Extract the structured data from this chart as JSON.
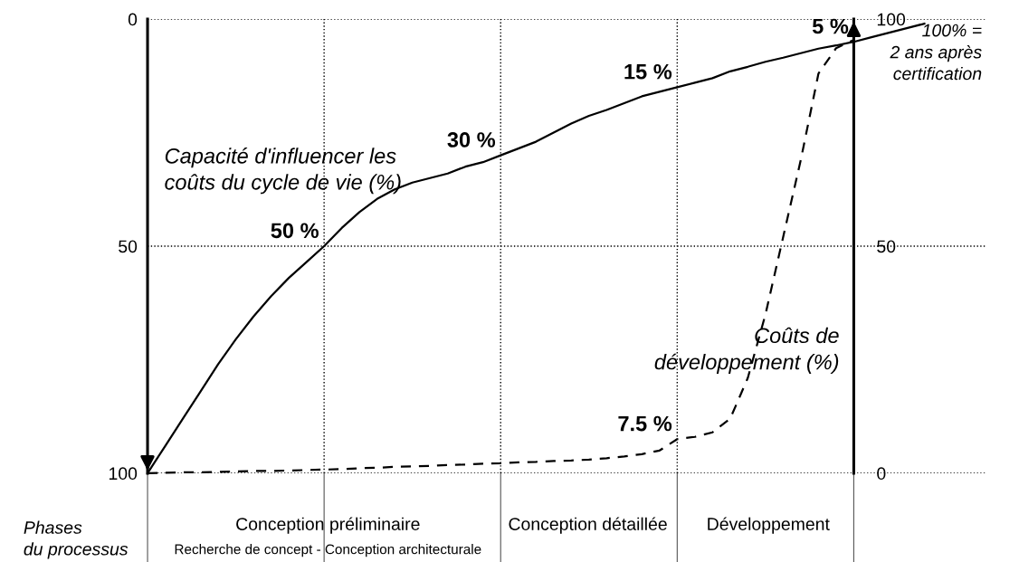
{
  "chart_data": {
    "type": "line",
    "xlabel": "Phases\ndu processus\nde conception",
    "categories": [
      null,
      null,
      null,
      null,
      null,
      null,
      null,
      null,
      null,
      null,
      null,
      null,
      null,
      null,
      null,
      null,
      null,
      null,
      null,
      null,
      null,
      null,
      null,
      null,
      null,
      null,
      null,
      null,
      null,
      null,
      null,
      null,
      null,
      null,
      null,
      null,
      null,
      null,
      null,
      null,
      null,
      null,
      null,
      null,
      null
    ],
    "ylim": [
      100,
      0
    ],
    "yticks": [
      0,
      50,
      100
    ],
    "y2lim": [
      0,
      100
    ],
    "y2ticks": [
      0,
      50,
      100
    ],
    "grid": true,
    "legend": false,
    "series": [
      {
        "name": "Capacité d'influencer les\ncoûts du cycle de vie (%)",
        "color": "#000000",
        "line_style": "solid",
        "marker": "none",
        "values": [
          100,
          94,
          88,
          82,
          76,
          70.5,
          65.5,
          61,
          57,
          53.5,
          50,
          46,
          42.5,
          39.6,
          37.5,
          36,
          35,
          34,
          32.5,
          31.5,
          30,
          28.5,
          27,
          25,
          23,
          21.3,
          20,
          18.5,
          17,
          16,
          15,
          14,
          13,
          11.5,
          10.5,
          9.4,
          8.5,
          7.5,
          6.5,
          5.8,
          5,
          4,
          3,
          2,
          1
        ],
        "value_labels": [
          null,
          null,
          null,
          null,
          null,
          null,
          null,
          null,
          null,
          null,
          "50 %",
          null,
          null,
          null,
          null,
          null,
          null,
          null,
          null,
          null,
          "30 %",
          null,
          null,
          null,
          null,
          null,
          null,
          null,
          null,
          null,
          "15 %",
          null,
          null,
          null,
          null,
          null,
          null,
          null,
          null,
          null,
          "5 %",
          null,
          null,
          null,
          null
        ]
      },
      {
        "name": "Coûts de\ndéveloppement (%)",
        "color": "#000000",
        "line_style": "dashed",
        "marker": "none",
        "axis": "y2",
        "values": [
          0,
          0.1,
          0.2,
          0.2,
          0.3,
          0.4,
          0.5,
          0.5,
          0.6,
          0.7,
          0.8,
          0.9,
          1.1,
          1.2,
          1.4,
          1.5,
          1.6,
          1.8,
          1.9,
          2.1,
          2.2,
          2.4,
          2.5,
          2.7,
          2.8,
          3,
          3.3,
          3.7,
          4.2,
          5,
          7.5,
          8,
          9,
          12,
          21,
          35,
          52,
          69,
          88,
          93.6,
          95.4,
          null,
          null,
          null,
          null
        ],
        "value_labels": [
          null,
          null,
          null,
          null,
          null,
          null,
          null,
          null,
          null,
          null,
          null,
          null,
          null,
          null,
          null,
          null,
          null,
          null,
          null,
          null,
          null,
          null,
          null,
          null,
          null,
          null,
          null,
          null,
          null,
          null,
          "7.5 %",
          null,
          null,
          null,
          null,
          null,
          null,
          null,
          null,
          null,
          null,
          null,
          null,
          null,
          null
        ]
      }
    ],
    "annotations": [
      "100% =\n2 ans après\ncertification",
      "Conception préliminaire",
      "Recherche de concept - Conception architecturale",
      "Conception détaillée",
      "Développement"
    ]
  }
}
